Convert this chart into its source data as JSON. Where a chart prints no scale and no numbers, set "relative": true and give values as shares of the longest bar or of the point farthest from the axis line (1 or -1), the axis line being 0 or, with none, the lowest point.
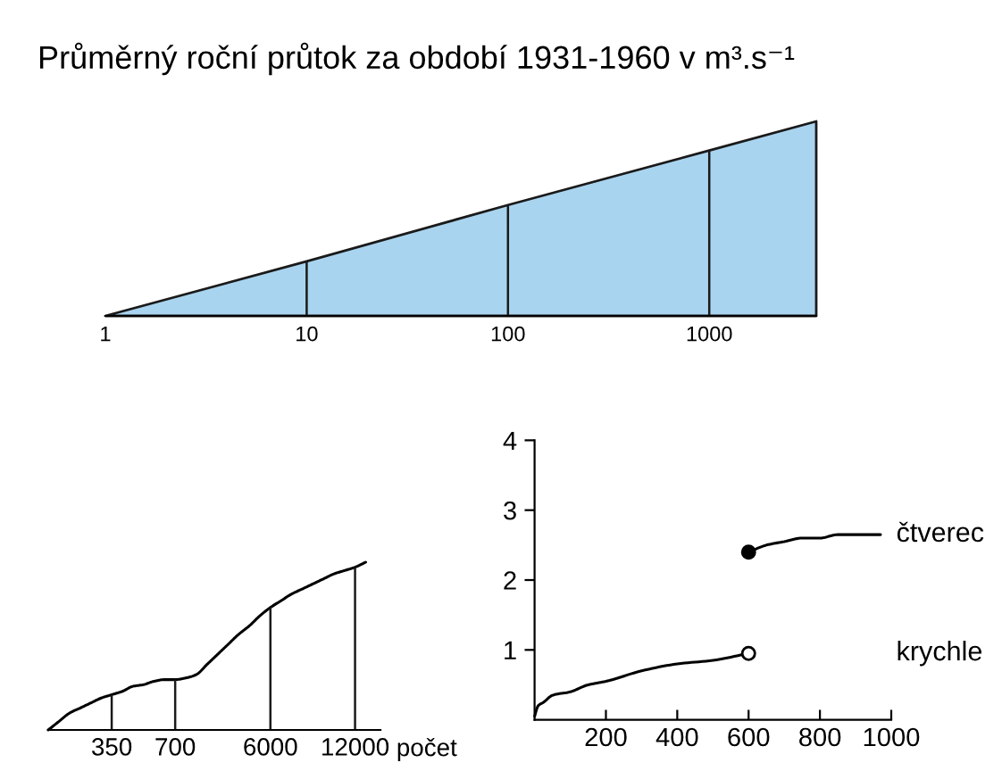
{
  "chart_data": [
    {
      "type": "area",
      "title": "Průměrný roční průtok za období 1931-1960 v m³.s⁻¹",
      "x": [
        1,
        10,
        100,
        1000,
        3400
      ],
      "values": [
        0,
        0.28,
        0.57,
        0.85,
        1
      ],
      "color": "#a9d4ef",
      "relative": true,
      "log": "x",
      "xlim": [
        1,
        3400
      ],
      "xticks": [
        1,
        10,
        100,
        1000
      ],
      "grid": "x"
    },
    {
      "type": "line",
      "categories": [
        null,
        null,
        null,
        null,
        null,
        null,
        "350",
        null,
        null,
        null,
        null,
        null,
        "700",
        null,
        null,
        null,
        null,
        null,
        null,
        null,
        null,
        "6000",
        null,
        null,
        null,
        null,
        null,
        null,
        null,
        "12000",
        null
      ],
      "values": [
        0,
        0.05,
        0.1,
        0.13,
        0.16,
        0.19,
        0.21,
        0.23,
        0.26,
        0.27,
        0.29,
        0.3,
        0.3,
        0.31,
        0.33,
        0.39,
        0.45,
        0.51,
        0.57,
        0.62,
        0.68,
        0.73,
        0.77,
        0.81,
        0.84,
        0.87,
        0.9,
        0.93,
        0.95,
        0.97,
        1
      ],
      "color": "#000000",
      "relative": true,
      "xlabel": "počet",
      "grid": "x"
    },
    {
      "type": "line",
      "xlim": [
        0,
        1000
      ],
      "ylim": [
        0,
        4
      ],
      "xticks": [
        200,
        400,
        600,
        800,
        1000
      ],
      "yticks": [
        1,
        2,
        3,
        4
      ],
      "series": [
        {
          "name": "čtverec",
          "color": "#000000",
          "x": [
            600,
            650,
            700,
            750,
            800,
            850,
            900,
            970
          ],
          "values": [
            2.4,
            2.5,
            2.55,
            2.6,
            2.6,
            2.65,
            2.65,
            2.65
          ]
        },
        {
          "name": "krychle",
          "color": "#000000",
          "x": [
            0,
            10,
            25,
            50,
            100,
            150,
            200,
            300,
            400,
            500,
            600
          ],
          "values": [
            0.05,
            0.2,
            0.25,
            0.35,
            0.4,
            0.5,
            0.55,
            0.7,
            0.8,
            0.85,
            0.95
          ]
        },
        {
          "type": "scatter",
          "marker": "circle",
          "color": "#000000",
          "x": [
            600
          ],
          "values": [
            2.4
          ]
        },
        {
          "type": "scatter",
          "marker": "circle",
          "color": "#ffffff",
          "x": [
            600
          ],
          "values": [
            0.95
          ]
        }
      ]
    }
  ]
}
